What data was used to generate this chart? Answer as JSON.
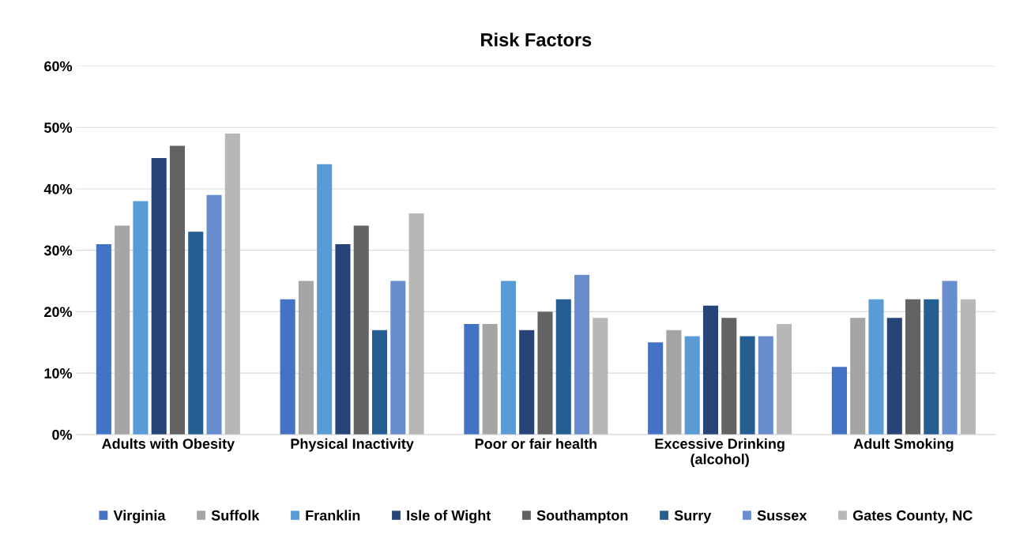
{
  "chart_data": {
    "type": "bar",
    "title": "Risk Factors",
    "categories": [
      "Adults with Obesity",
      "Physical Inactivity",
      "Poor or fair health",
      "Excessive Drinking\n(alcohol)",
      "Adult Smoking"
    ],
    "series": [
      {
        "name": "Virginia",
        "color": "#4472c4",
        "values": [
          31,
          22,
          18,
          15,
          11
        ]
      },
      {
        "name": "Suffolk",
        "color": "#a5a5a5",
        "values": [
          34,
          25,
          18,
          17,
          19
        ]
      },
      {
        "name": "Franklin",
        "color": "#5b9bd5",
        "values": [
          38,
          44,
          25,
          16,
          22
        ]
      },
      {
        "name": "Isle of Wight",
        "color": "#264478",
        "values": [
          45,
          31,
          17,
          21,
          19
        ]
      },
      {
        "name": "Southampton",
        "color": "#636363",
        "values": [
          47,
          34,
          20,
          19,
          22
        ]
      },
      {
        "name": "Surry",
        "color": "#255e91",
        "values": [
          33,
          17,
          22,
          16,
          22
        ]
      },
      {
        "name": "Sussex",
        "color": "#698ed0",
        "values": [
          39,
          25,
          26,
          16,
          25
        ]
      },
      {
        "name": "Gates County, NC",
        "color": "#b7b7b7",
        "values": [
          49,
          36,
          19,
          18,
          22
        ]
      }
    ],
    "ylim": [
      0,
      60
    ],
    "yticks": [
      {
        "value": 0,
        "label": "0%"
      },
      {
        "value": 10,
        "label": "10%"
      },
      {
        "value": 20,
        "label": "20%"
      },
      {
        "value": 30,
        "label": "30%"
      },
      {
        "value": 40,
        "label": "40%"
      },
      {
        "value": 50,
        "label": "50%"
      },
      {
        "value": 60,
        "label": "60%"
      }
    ],
    "grid": "y",
    "legend": "bottom"
  }
}
